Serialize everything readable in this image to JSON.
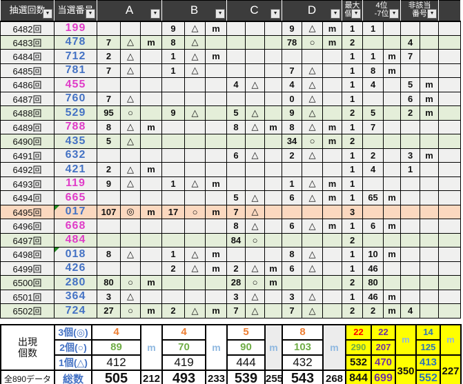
{
  "colors": {
    "win_magenta": "#e03cc8",
    "win_blue": "#4472c4",
    "purple": "#7030a0",
    "na_blue": "#4472c4",
    "val_orange": "#ed7d31",
    "val_green": "#70ad47",
    "val_red": "#ff0000",
    "m_blue": "#8fb8e0",
    "yellow": "#ffff00",
    "row_green": "#e4eed9",
    "row_orange": "#fbd8bf",
    "row_white": "#f0f0ef",
    "header_bg": "#3c3c3c"
  },
  "icons": {
    "filter": "▼"
  },
  "header": {
    "draw_label": "抽選回数",
    "win_label": "当選番号",
    "group_labels": [
      "A",
      "B",
      "C",
      "D"
    ],
    "max_label": "最大\n個数",
    "rank_label": "4位\n-7位",
    "na_label": "非該当\n番号"
  },
  "rows": [
    {
      "draw": "6482回",
      "win": "199",
      "win_color": "magenta",
      "bg": "white",
      "error_flag": false,
      "a": [
        "",
        "",
        ""
      ],
      "b": [
        "9",
        "△",
        "m"
      ],
      "c": [
        "",
        "",
        ""
      ],
      "d": [
        "9",
        "△",
        "m"
      ],
      "max": "1",
      "p47": [
        "1",
        ""
      ],
      "na": [
        "",
        ""
      ]
    },
    {
      "draw": "6483回",
      "win": "478",
      "win_color": "blue",
      "bg": "green",
      "error_flag": false,
      "a": [
        "7",
        "△",
        "m"
      ],
      "b": [
        "8",
        "△",
        ""
      ],
      "c": [
        "",
        "",
        ""
      ],
      "d": [
        "78",
        "○",
        "m"
      ],
      "max": "2",
      "p47": [
        "",
        ""
      ],
      "na": [
        "4",
        ""
      ]
    },
    {
      "draw": "6484回",
      "win": "712",
      "win_color": "blue",
      "bg": "white",
      "error_flag": false,
      "a": [
        "2",
        "△",
        ""
      ],
      "b": [
        "1",
        "△",
        "m"
      ],
      "c": [
        "",
        "",
        ""
      ],
      "d": [
        "",
        "",
        ""
      ],
      "max": "1",
      "p47": [
        "1",
        "m"
      ],
      "na": [
        "7",
        ""
      ]
    },
    {
      "draw": "6485回",
      "win": "781",
      "win_color": "blue",
      "bg": "white",
      "error_flag": false,
      "a": [
        "7",
        "△",
        ""
      ],
      "b": [
        "1",
        "△",
        ""
      ],
      "c": [
        "",
        "",
        ""
      ],
      "d": [
        "7",
        "△",
        ""
      ],
      "max": "1",
      "p47": [
        "8",
        "m"
      ],
      "na": [
        "",
        ""
      ]
    },
    {
      "draw": "6486回",
      "win": "455",
      "win_color": "magenta",
      "bg": "white",
      "error_flag": false,
      "a": [
        "",
        "",
        ""
      ],
      "b": [
        "",
        "",
        ""
      ],
      "c": [
        "4",
        "△",
        ""
      ],
      "d": [
        "4",
        "△",
        ""
      ],
      "max": "1",
      "p47": [
        "4",
        ""
      ],
      "na": [
        "5",
        "m"
      ]
    },
    {
      "draw": "6487回",
      "win": "760",
      "win_color": "blue",
      "bg": "white",
      "error_flag": false,
      "a": [
        "7",
        "△",
        ""
      ],
      "b": [
        "",
        "",
        ""
      ],
      "c": [
        "",
        "",
        ""
      ],
      "d": [
        "0",
        "△",
        ""
      ],
      "max": "1",
      "p47": [
        "",
        ""
      ],
      "na": [
        "6",
        "m"
      ]
    },
    {
      "draw": "6488回",
      "win": "529",
      "win_color": "blue",
      "bg": "green",
      "error_flag": false,
      "a": [
        "95",
        "○",
        ""
      ],
      "b": [
        "9",
        "△",
        ""
      ],
      "c": [
        "5",
        "△",
        ""
      ],
      "d": [
        "9",
        "△",
        ""
      ],
      "max": "2",
      "p47": [
        "5",
        ""
      ],
      "na": [
        "2",
        "m"
      ]
    },
    {
      "draw": "6489回",
      "win": "788",
      "win_color": "magenta",
      "bg": "white",
      "error_flag": false,
      "a": [
        "8",
        "△",
        "m"
      ],
      "b": [
        "",
        "",
        ""
      ],
      "c": [
        "8",
        "△",
        "m"
      ],
      "d": [
        "8",
        "△",
        "m"
      ],
      "max": "1",
      "p47": [
        "7",
        ""
      ],
      "na": [
        "",
        ""
      ]
    },
    {
      "draw": "6490回",
      "win": "435",
      "win_color": "blue",
      "bg": "green",
      "error_flag": false,
      "a": [
        "5",
        "△",
        ""
      ],
      "b": [
        "",
        "",
        ""
      ],
      "c": [
        "",
        "",
        ""
      ],
      "d": [
        "34",
        "○",
        "m"
      ],
      "max": "2",
      "p47": [
        "",
        ""
      ],
      "na": [
        "",
        ""
      ]
    },
    {
      "draw": "6491回",
      "win": "632",
      "win_color": "blue",
      "bg": "white",
      "error_flag": false,
      "a": [
        "",
        "",
        ""
      ],
      "b": [
        "",
        "",
        ""
      ],
      "c": [
        "6",
        "△",
        ""
      ],
      "d": [
        "2",
        "△",
        ""
      ],
      "max": "1",
      "p47": [
        "2",
        ""
      ],
      "na": [
        "3",
        "m"
      ]
    },
    {
      "draw": "6492回",
      "win": "421",
      "win_color": "blue",
      "bg": "white",
      "error_flag": false,
      "a": [
        "2",
        "△",
        "m"
      ],
      "b": [
        "",
        "",
        ""
      ],
      "c": [
        "",
        "",
        ""
      ],
      "d": [
        "",
        "",
        ""
      ],
      "max": "1",
      "p47": [
        "4",
        ""
      ],
      "na": [
        "1",
        ""
      ]
    },
    {
      "draw": "6493回",
      "win": "119",
      "win_color": "magenta",
      "bg": "white",
      "error_flag": false,
      "a": [
        "9",
        "△",
        ""
      ],
      "b": [
        "1",
        "△",
        "m"
      ],
      "c": [
        "",
        "",
        ""
      ],
      "d": [
        "1",
        "△",
        "m"
      ],
      "max": "1",
      "p47": [
        "",
        ""
      ],
      "na": [
        "",
        ""
      ]
    },
    {
      "draw": "6494回",
      "win": "665",
      "win_color": "magenta",
      "bg": "white",
      "error_flag": false,
      "a": [
        "",
        "",
        ""
      ],
      "b": [
        "",
        "",
        ""
      ],
      "c": [
        "5",
        "△",
        ""
      ],
      "d": [
        "6",
        "△",
        "m"
      ],
      "max": "1",
      "p47": [
        "65",
        "m"
      ],
      "na": [
        "",
        ""
      ]
    },
    {
      "draw": "6495回",
      "win": "017",
      "win_color": "blue",
      "bg": "orange",
      "error_flag": true,
      "a": [
        "107",
        "◎",
        "m"
      ],
      "b": [
        "17",
        "○",
        "m"
      ],
      "c": [
        "7",
        "△",
        ""
      ],
      "d": [
        "",
        "",
        ""
      ],
      "max": "3",
      "p47": [
        "",
        ""
      ],
      "na": [
        "",
        ""
      ]
    },
    {
      "draw": "6496回",
      "win": "668",
      "win_color": "magenta",
      "bg": "white",
      "error_flag": false,
      "a": [
        "",
        "",
        ""
      ],
      "b": [
        "",
        "",
        ""
      ],
      "c": [
        "8",
        "△",
        ""
      ],
      "d": [
        "6",
        "△",
        "m"
      ],
      "max": "1",
      "p47": [
        "6",
        "m"
      ],
      "na": [
        "",
        ""
      ]
    },
    {
      "draw": "6497回",
      "win": "484",
      "win_color": "magenta",
      "bg": "green",
      "error_flag": false,
      "a": [
        "",
        "",
        ""
      ],
      "b": [
        "",
        "",
        ""
      ],
      "c": [
        "84",
        "○",
        ""
      ],
      "d": [
        "",
        "",
        ""
      ],
      "max": "2",
      "p47": [
        "",
        ""
      ],
      "na": [
        "",
        ""
      ]
    },
    {
      "draw": "6498回",
      "win": "018",
      "win_color": "blue",
      "bg": "white",
      "error_flag": true,
      "a": [
        "8",
        "△",
        ""
      ],
      "b": [
        "1",
        "△",
        "m"
      ],
      "c": [
        "",
        "",
        ""
      ],
      "d": [
        "8",
        "△",
        ""
      ],
      "max": "1",
      "p47": [
        "10",
        "m"
      ],
      "na": [
        "",
        ""
      ]
    },
    {
      "draw": "6499回",
      "win": "426",
      "win_color": "blue",
      "bg": "white",
      "error_flag": false,
      "a": [
        "",
        "",
        ""
      ],
      "b": [
        "2",
        "△",
        "m"
      ],
      "c": [
        "2",
        "△",
        "m"
      ],
      "d": [
        "6",
        "△",
        ""
      ],
      "max": "1",
      "p47": [
        "46",
        ""
      ],
      "na": [
        "",
        ""
      ]
    },
    {
      "draw": "6500回",
      "win": "280",
      "win_color": "blue",
      "bg": "green",
      "error_flag": false,
      "a": [
        "80",
        "○",
        "m"
      ],
      "b": [
        "",
        "",
        ""
      ],
      "c": [
        "28",
        "○",
        "m"
      ],
      "d": [
        "",
        "",
        ""
      ],
      "max": "2",
      "p47": [
        "80",
        ""
      ],
      "na": [
        "",
        ""
      ]
    },
    {
      "draw": "6501回",
      "win": "364",
      "win_color": "blue",
      "bg": "white",
      "error_flag": false,
      "a": [
        "3",
        "△",
        ""
      ],
      "b": [
        "",
        "",
        ""
      ],
      "c": [
        "3",
        "△",
        ""
      ],
      "d": [
        "3",
        "△",
        ""
      ],
      "max": "1",
      "p47": [
        "46",
        "m"
      ],
      "na": [
        "",
        ""
      ]
    },
    {
      "draw": "6502回",
      "win": "724",
      "win_color": "blue",
      "bg": "green",
      "error_flag": false,
      "a": [
        "27",
        "○",
        "m"
      ],
      "b": [
        "2",
        "△",
        "m"
      ],
      "c": [
        "7",
        "△",
        ""
      ],
      "d": [
        "7",
        "△",
        ""
      ],
      "max": "2",
      "p47": [
        "2",
        "m"
      ],
      "na": [
        "4",
        ""
      ]
    }
  ],
  "summary": {
    "group_label": "出現\n個数",
    "data_count_label": "全890データ",
    "row_labels": [
      "3個(◎)",
      "2個(○)",
      "1個(△)",
      "総数"
    ],
    "m_label": "m",
    "groups": [
      {
        "name": "A",
        "values": [
          "4",
          "89",
          "412",
          "505"
        ],
        "m_total": "212"
      },
      {
        "name": "B",
        "values": [
          "4",
          "70",
          "419",
          "493"
        ],
        "m_total": "233"
      },
      {
        "name": "C",
        "values": [
          "5",
          "90",
          "444",
          "539"
        ],
        "m_total": "255"
      },
      {
        "name": "D",
        "values": [
          "8",
          "103",
          "432",
          "543"
        ],
        "m_total": "268"
      }
    ],
    "yellow": {
      "max_col": [
        "22",
        "290",
        "532",
        "844"
      ],
      "rank_col": [
        "22",
        "207",
        "470",
        "699"
      ],
      "rank_m_total": "350",
      "na_col": [
        "14",
        "125",
        "413",
        "552"
      ],
      "na_m_total": "227"
    }
  }
}
